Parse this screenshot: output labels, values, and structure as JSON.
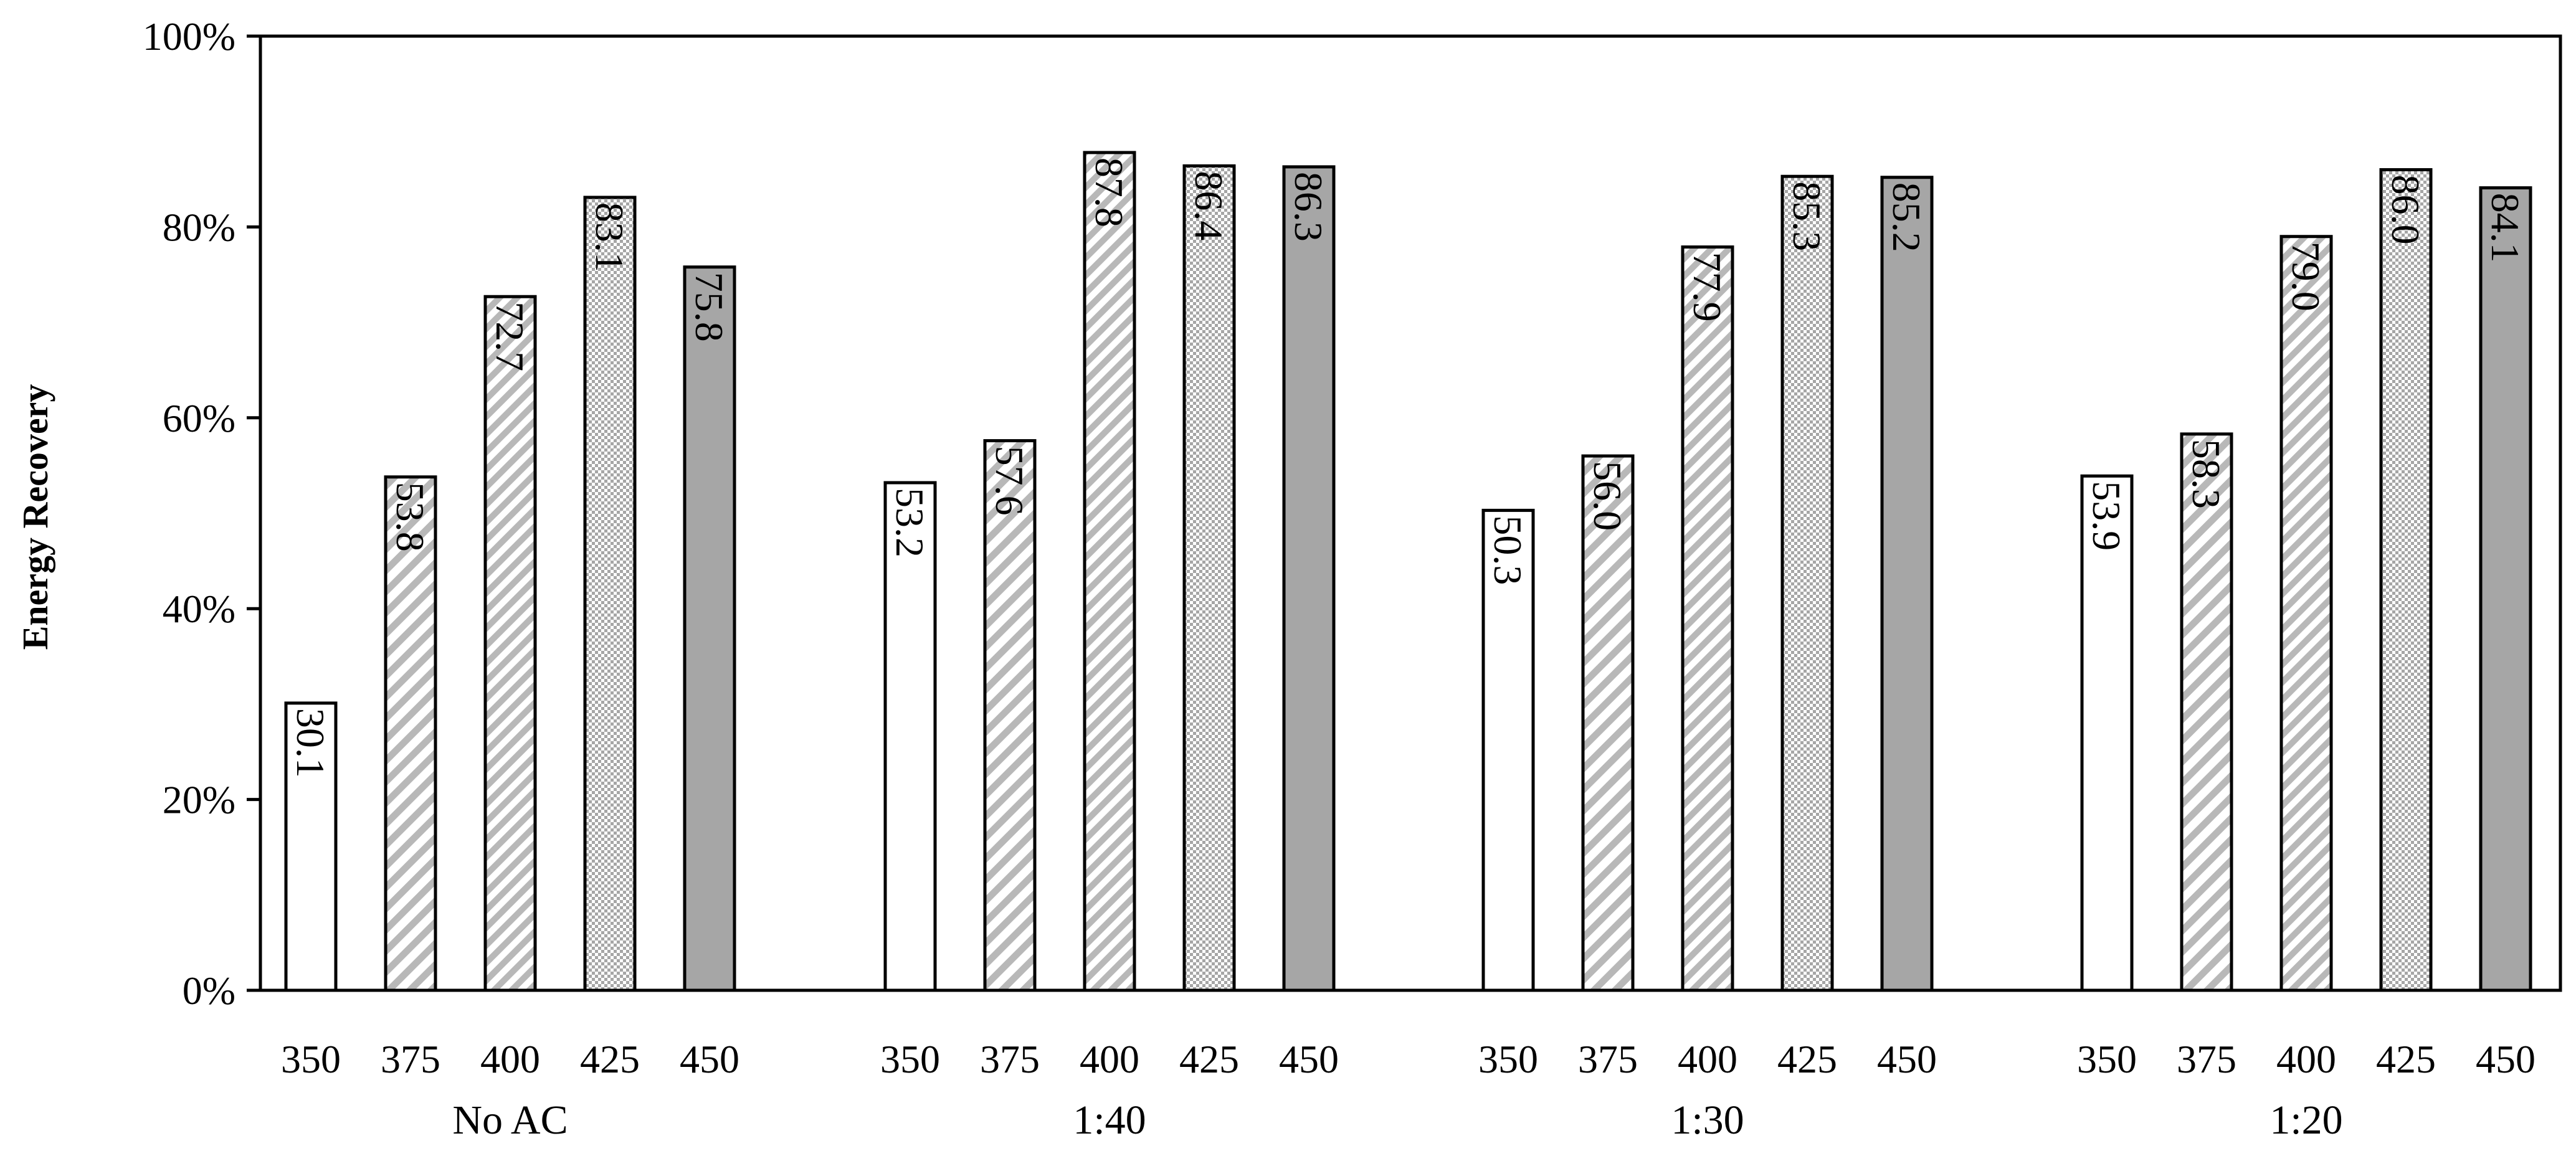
{
  "chart_data": {
    "type": "bar",
    "title": "",
    "ylabel": "Energy Recovery",
    "xlabel": "",
    "ylim": [
      0,
      100
    ],
    "y_ticks": [
      "0%",
      "20%",
      "40%",
      "60%",
      "80%",
      "100%"
    ],
    "y_tick_values": [
      0,
      20,
      40,
      60,
      80,
      100
    ],
    "groups": [
      {
        "label": "No AC",
        "categories": [
          "350",
          "375",
          "400",
          "425",
          "450"
        ],
        "values": [
          30.1,
          53.8,
          72.7,
          83.1,
          75.8
        ],
        "value_labels": [
          "30.1",
          "53.8",
          "72.7",
          "83.1",
          "75.8"
        ]
      },
      {
        "label": "1:40",
        "categories": [
          "350",
          "375",
          "400",
          "425",
          "450"
        ],
        "values": [
          53.2,
          57.6,
          87.8,
          86.4,
          86.3
        ],
        "value_labels": [
          "53.2",
          "57.6",
          "87.8",
          "86.4",
          "86.3"
        ]
      },
      {
        "label": "1:30",
        "categories": [
          "350",
          "375",
          "400",
          "425",
          "450"
        ],
        "values": [
          50.3,
          56.0,
          77.9,
          85.3,
          85.2
        ],
        "value_labels": [
          "50.3",
          "56.0",
          "77.9",
          "85.3",
          "85.2"
        ]
      },
      {
        "label": "1:20",
        "categories": [
          "350",
          "375",
          "400",
          "425",
          "450"
        ],
        "values": [
          53.9,
          58.3,
          79.0,
          86.0,
          84.1
        ],
        "value_labels": [
          "53.9",
          "58.3",
          "79.0",
          "86.0",
          "84.1"
        ]
      }
    ],
    "bar_fills": [
      "white",
      "diagonal-hatch",
      "diagonal-hatch",
      "dotted",
      "solid-gray"
    ],
    "grid": false,
    "legend": "none",
    "colors": {
      "outline": "#000000",
      "hatch": "#b8b8b8",
      "dots": "#a6a6a6",
      "solid": "#a6a6a6"
    }
  }
}
